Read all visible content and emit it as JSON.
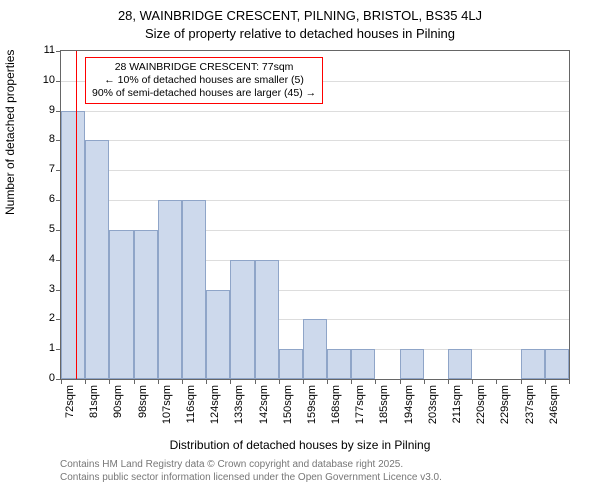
{
  "titles": {
    "line1": "28, WAINBRIDGE CRESCENT, PILNING, BRISTOL, BS35 4LJ",
    "line2": "Size of property relative to detached houses in Pilning"
  },
  "axes": {
    "ylabel": "Number of detached properties",
    "xlabel": "Distribution of detached houses by size in Pilning",
    "ylim": [
      0,
      11
    ],
    "yticks": [
      0,
      1,
      2,
      3,
      4,
      5,
      6,
      7,
      8,
      9,
      10,
      11
    ],
    "xtick_labels": [
      "72sqm",
      "81sqm",
      "90sqm",
      "98sqm",
      "107sqm",
      "116sqm",
      "124sqm",
      "133sqm",
      "142sqm",
      "150sqm",
      "159sqm",
      "168sqm",
      "177sqm",
      "185sqm",
      "194sqm",
      "203sqm",
      "211sqm",
      "220sqm",
      "229sqm",
      "237sqm",
      "246sqm"
    ],
    "grid_color": "#dddddd",
    "tick_fontsize": 11,
    "label_fontsize": 12
  },
  "histogram": {
    "type": "histogram",
    "values": [
      9,
      8,
      5,
      5,
      6,
      6,
      3,
      4,
      4,
      1,
      2,
      1,
      1,
      0,
      1,
      0,
      1,
      0,
      0,
      1,
      1
    ],
    "bar_fill": "#cdd9ec",
    "bar_border": "#8fa5c8",
    "bar_width": 1.0
  },
  "marker": {
    "position_index": 0.6,
    "color": "#ff0000",
    "box": {
      "line1": "28 WAINBRIDGE CRESCENT: 77sqm",
      "line2": "← 10% of detached houses are smaller (5)",
      "line3": "90% of semi-detached houses are larger (45) →"
    }
  },
  "credits": {
    "line1": "Contains HM Land Registry data © Crown copyright and database right 2025.",
    "line2": "Contains public sector information licensed under the Open Government Licence v3.0."
  },
  "style": {
    "background_color": "#ffffff",
    "title_fontsize": 13,
    "credits_color": "#777777",
    "credits_fontsize": 10
  }
}
